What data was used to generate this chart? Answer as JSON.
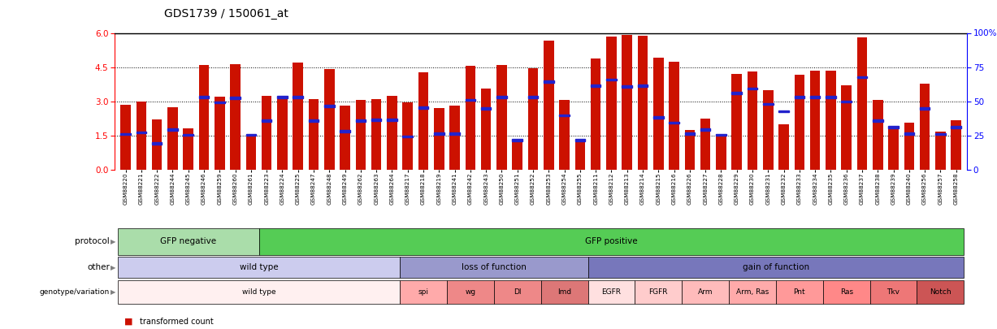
{
  "title": "GDS1739 / 150061_at",
  "ylim_left": [
    0,
    6
  ],
  "ylim_right": [
    0,
    100
  ],
  "yticks_left": [
    0,
    1.5,
    3.0,
    4.5,
    6
  ],
  "yticks_right": [
    0,
    25,
    50,
    75,
    100
  ],
  "dotted_lines": [
    1.5,
    3.0,
    4.5
  ],
  "samples": [
    "GSM88220",
    "GSM88221",
    "GSM88222",
    "GSM88244",
    "GSM88245",
    "GSM88246",
    "GSM88259",
    "GSM88260",
    "GSM88261",
    "GSM88223",
    "GSM88224",
    "GSM88225",
    "GSM88247",
    "GSM88248",
    "GSM88249",
    "GSM88262",
    "GSM88263",
    "GSM88264",
    "GSM88217",
    "GSM88218",
    "GSM88219",
    "GSM88241",
    "GSM88242",
    "GSM88243",
    "GSM88250",
    "GSM88251",
    "GSM88252",
    "GSM88253",
    "GSM88254",
    "GSM88255",
    "GSM88211",
    "GSM88212",
    "GSM88213",
    "GSM88214",
    "GSM88215",
    "GSM88216",
    "GSM88226",
    "GSM88227",
    "GSM88228",
    "GSM88229",
    "GSM88230",
    "GSM88231",
    "GSM88232",
    "GSM88233",
    "GSM88234",
    "GSM88235",
    "GSM88236",
    "GSM88237",
    "GSM88238",
    "GSM88239",
    "GSM88240",
    "GSM88256",
    "GSM88257",
    "GSM88258"
  ],
  "bar_values": [
    2.85,
    3.0,
    2.2,
    2.72,
    1.8,
    4.6,
    3.2,
    4.62,
    1.52,
    3.22,
    3.2,
    4.68,
    3.1,
    4.42,
    2.8,
    3.05,
    3.08,
    3.22,
    2.95,
    4.28,
    2.7,
    2.8,
    4.55,
    3.55,
    4.58,
    1.28,
    4.45,
    5.65,
    3.05,
    1.35,
    4.88,
    5.85,
    5.92,
    5.88,
    4.92,
    4.75,
    1.75,
    2.25,
    1.55,
    4.2,
    4.3,
    3.5,
    2.0,
    4.15,
    4.35,
    4.35,
    3.68,
    5.8,
    3.05,
    1.85,
    2.05,
    3.78,
    1.65,
    2.15
  ],
  "percentile_values": [
    1.55,
    1.62,
    1.15,
    1.75,
    1.52,
    3.18,
    2.95,
    3.15,
    1.52,
    2.15,
    3.18,
    3.18,
    2.15,
    2.78,
    1.68,
    2.15,
    2.18,
    2.18,
    1.45,
    2.72,
    1.58,
    1.58,
    3.05,
    2.68,
    3.18,
    1.28,
    3.18,
    3.85,
    2.38,
    1.28,
    3.68,
    3.95,
    3.65,
    3.68,
    2.28,
    2.05,
    1.58,
    1.75,
    1.52,
    3.35,
    3.55,
    2.88,
    2.55,
    3.18,
    3.18,
    3.18,
    2.98,
    4.05,
    2.15,
    1.85,
    1.58,
    2.68,
    1.55,
    1.85
  ],
  "protocol_groups": [
    {
      "label": "GFP negative",
      "start": 0,
      "end": 9,
      "color": "#aaddaa"
    },
    {
      "label": "GFP positive",
      "start": 9,
      "end": 54,
      "color": "#55cc55"
    }
  ],
  "other_groups": [
    {
      "label": "wild type",
      "start": 0,
      "end": 18,
      "color": "#ccccee"
    },
    {
      "label": "loss of function",
      "start": 18,
      "end": 30,
      "color": "#9999cc"
    },
    {
      "label": "gain of function",
      "start": 30,
      "end": 54,
      "color": "#7777bb"
    }
  ],
  "genotype_groups": [
    {
      "label": "wild type",
      "start": 0,
      "end": 18,
      "color": "#fff0f0"
    },
    {
      "label": "spi",
      "start": 18,
      "end": 21,
      "color": "#ffaaaa"
    },
    {
      "label": "wg",
      "start": 21,
      "end": 24,
      "color": "#ee8888"
    },
    {
      "label": "Dl",
      "start": 24,
      "end": 27,
      "color": "#ee8888"
    },
    {
      "label": "lmd",
      "start": 27,
      "end": 30,
      "color": "#dd7777"
    },
    {
      "label": "EGFR",
      "start": 30,
      "end": 33,
      "color": "#ffe0e0"
    },
    {
      "label": "FGFR",
      "start": 33,
      "end": 36,
      "color": "#ffcccc"
    },
    {
      "label": "Arm",
      "start": 36,
      "end": 39,
      "color": "#ffbbbb"
    },
    {
      "label": "Arm, Ras",
      "start": 39,
      "end": 42,
      "color": "#ffaaaa"
    },
    {
      "label": "Pnt",
      "start": 42,
      "end": 45,
      "color": "#ff9999"
    },
    {
      "label": "Ras",
      "start": 45,
      "end": 48,
      "color": "#ff8888"
    },
    {
      "label": "Tkv",
      "start": 48,
      "end": 51,
      "color": "#ee7777"
    },
    {
      "label": "Notch",
      "start": 51,
      "end": 54,
      "color": "#cc5555"
    }
  ],
  "bar_color": "#cc1100",
  "blue_color": "#2222cc",
  "bg_color": "#ffffff"
}
